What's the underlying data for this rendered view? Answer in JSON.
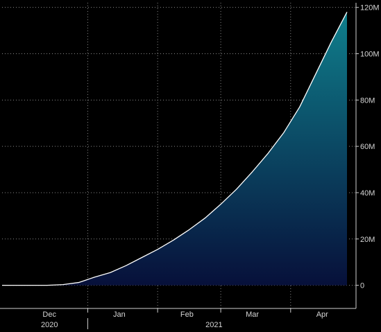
{
  "chart_data": {
    "type": "area",
    "title": "",
    "xlabel": "",
    "ylabel": "",
    "grid": true,
    "legend": "none",
    "colors": {
      "background": "#000000",
      "fill_top": "#0f7f8c",
      "fill_bottom": "#07103a",
      "line": "#ffffff",
      "grid": "#8a8a8a",
      "text": "#d6d6d6"
    },
    "x_range": [
      "2020-11-24",
      "2021-04-26"
    ],
    "ylim": [
      -10000000,
      122000000
    ],
    "y_ticks": [
      0,
      20000000,
      40000000,
      60000000,
      80000000,
      100000000,
      120000000
    ],
    "y_tick_labels": [
      "0",
      "20M",
      "40M",
      "60M",
      "80M",
      "100M",
      "120M"
    ],
    "y_axis_side": "right",
    "month_ticks": [
      {
        "label": "Dec",
        "date": "2020-12-15"
      },
      {
        "label": "Jan",
        "date": "2021-01-15"
      },
      {
        "label": "Feb",
        "date": "2021-02-14"
      },
      {
        "label": "Mar",
        "date": "2021-03-15"
      },
      {
        "label": "Apr",
        "date": "2021-04-15"
      }
    ],
    "month_boundaries": [
      "2021-01-01",
      "2021-02-01",
      "2021-03-01",
      "2021-04-01"
    ],
    "year_labels": [
      {
        "label": "2020",
        "date": "2020-12-15"
      },
      {
        "label": "2021",
        "date": "2021-02-26"
      }
    ],
    "year_boundary": "2021-01-01",
    "series": [
      {
        "values_unit": "count",
        "points": [
          [
            "2020-11-24",
            0
          ],
          [
            "2020-12-01",
            0
          ],
          [
            "2020-12-08",
            0
          ],
          [
            "2020-12-14",
            0
          ],
          [
            "2020-12-21",
            300000
          ],
          [
            "2020-12-28",
            1200000
          ],
          [
            "2021-01-04",
            3500000
          ],
          [
            "2021-01-11",
            5500000
          ],
          [
            "2021-01-18",
            8500000
          ],
          [
            "2021-01-25",
            12000000
          ],
          [
            "2021-02-01",
            15500000
          ],
          [
            "2021-02-08",
            19500000
          ],
          [
            "2021-02-15",
            24000000
          ],
          [
            "2021-02-22",
            29000000
          ],
          [
            "2021-03-01",
            35000000
          ],
          [
            "2021-03-08",
            41500000
          ],
          [
            "2021-03-15",
            49000000
          ],
          [
            "2021-03-22",
            57000000
          ],
          [
            "2021-03-29",
            66000000
          ],
          [
            "2021-04-05",
            77000000
          ],
          [
            "2021-04-12",
            91000000
          ],
          [
            "2021-04-19",
            105000000
          ],
          [
            "2021-04-26",
            118000000
          ]
        ]
      }
    ]
  }
}
